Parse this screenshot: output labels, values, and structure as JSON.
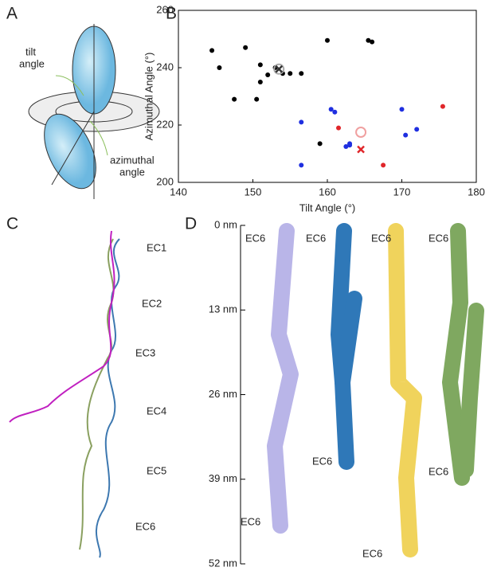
{
  "panel_labels": [
    "A",
    "B",
    "C",
    "D"
  ],
  "panel_a": {
    "tilt_label": [
      "tilt",
      "angle"
    ],
    "azimuthal_label": [
      "azimuthal",
      "angle"
    ]
  },
  "chart_data": {
    "type": "scatter",
    "xlabel": "Tilt Angle (°)",
    "ylabel": "Azimuthal Angle (°)",
    "xlim": [
      140,
      180
    ],
    "ylim": [
      200,
      260
    ],
    "xticks": [
      140,
      150,
      160,
      170,
      180
    ],
    "yticks": [
      200,
      220,
      240,
      260
    ],
    "series": [
      {
        "color": "#000000",
        "marker": "dot",
        "x": [
          144.5,
          145.5,
          147.5,
          149,
          150.5,
          151,
          151,
          152,
          153,
          154,
          155,
          156.5,
          159,
          160,
          165.5,
          166
        ],
        "values": [
          246,
          240,
          229,
          247,
          229,
          241,
          235,
          237.5,
          240,
          238,
          238,
          238,
          213.5,
          249.5,
          249.5,
          249
        ]
      },
      {
        "color": "#1f2fe0",
        "marker": "dot",
        "x": [
          156.5,
          156.5,
          160.5,
          161,
          162.5,
          163,
          163,
          170,
          170.5,
          172
        ],
        "values": [
          221,
          206,
          225.5,
          224.5,
          212.5,
          213.5,
          213,
          225.5,
          216.5,
          218.5
        ]
      },
      {
        "color": "#e0262a",
        "marker": "dot",
        "x": [
          161.5,
          167.5,
          175.5
        ],
        "values": [
          219,
          206,
          226.5
        ]
      },
      {
        "color": "#aaaaaa",
        "marker": "ring",
        "x": [
          153.5
        ],
        "values": [
          239.5
        ]
      },
      {
        "color": "#333333",
        "marker": "cross",
        "x": [
          153.5
        ],
        "values": [
          239.5
        ]
      },
      {
        "color": "#f0a0a0",
        "marker": "ring",
        "x": [
          164.5
        ],
        "values": [
          217.5
        ]
      },
      {
        "color": "#e0262a",
        "marker": "cross",
        "x": [
          164.5
        ],
        "values": [
          211.5
        ]
      }
    ]
  },
  "panel_c": {
    "labels": [
      "EC1",
      "EC2",
      "EC3",
      "EC4",
      "EC5",
      "EC6"
    ]
  },
  "panel_d": {
    "ylim": [
      0,
      52
    ],
    "yticks": [
      {
        "value": 0,
        "label": "0 nm"
      },
      {
        "value": 13,
        "label": "13 nm"
      },
      {
        "value": 26,
        "label": "26 nm"
      },
      {
        "value": 39,
        "label": "39 nm"
      },
      {
        "value": 52,
        "label": "52 nm"
      }
    ],
    "labels": [
      "EC6",
      "EC6",
      "EC6",
      "EC6",
      "EC6",
      "EC6",
      "EC6",
      "EC6"
    ]
  }
}
